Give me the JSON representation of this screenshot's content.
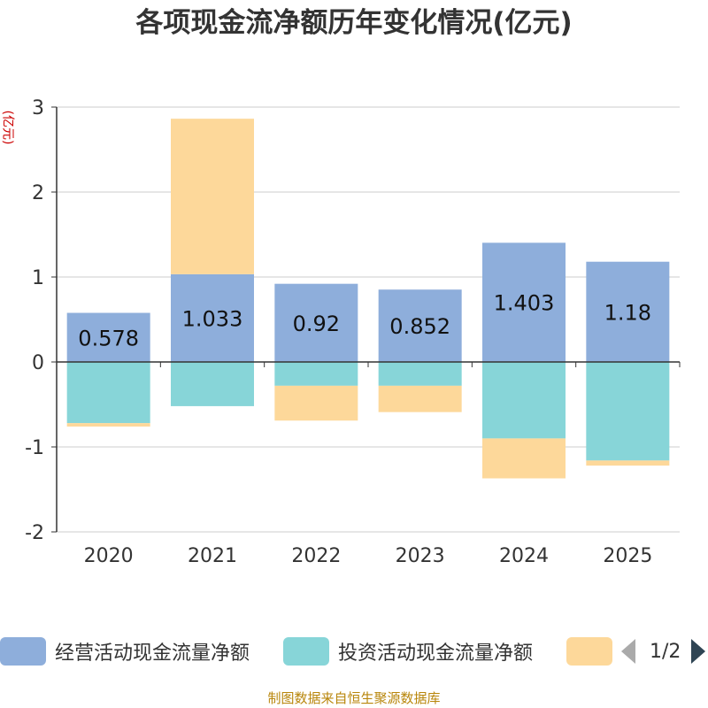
{
  "chart_data": {
    "type": "bar",
    "stacked": true,
    "title": "各项现金流净额历年变化情况(亿元)",
    "ylabel": "(亿元)",
    "xlabel": "",
    "categories": [
      "2020",
      "2021",
      "2022",
      "2023",
      "2024",
      "2025"
    ],
    "ylim": [
      -2,
      3
    ],
    "yticks": [
      -2,
      -1,
      0,
      1,
      2,
      3
    ],
    "grid": true,
    "series": [
      {
        "name": "经营活动现金流量净额",
        "color": "#8eaedb",
        "values": [
          0.578,
          1.033,
          0.92,
          0.852,
          1.403,
          1.18
        ],
        "labels": [
          "0.578",
          "1.033",
          "0.92",
          "0.852",
          "1.403",
          "1.18"
        ]
      },
      {
        "name": "投资活动现金流量净额",
        "color": "#87d5d8",
        "values": [
          -0.72,
          -0.52,
          -0.28,
          -0.28,
          -0.9,
          -1.16
        ]
      },
      {
        "name": "",
        "color": "#fdd89a",
        "values": [
          -0.04,
          1.83,
          -0.41,
          -0.31,
          -0.47,
          -0.06
        ]
      }
    ],
    "legend": {
      "position": "bottom",
      "page": "1/2"
    }
  },
  "source_note": "制图数据来自恒生聚源数据库"
}
